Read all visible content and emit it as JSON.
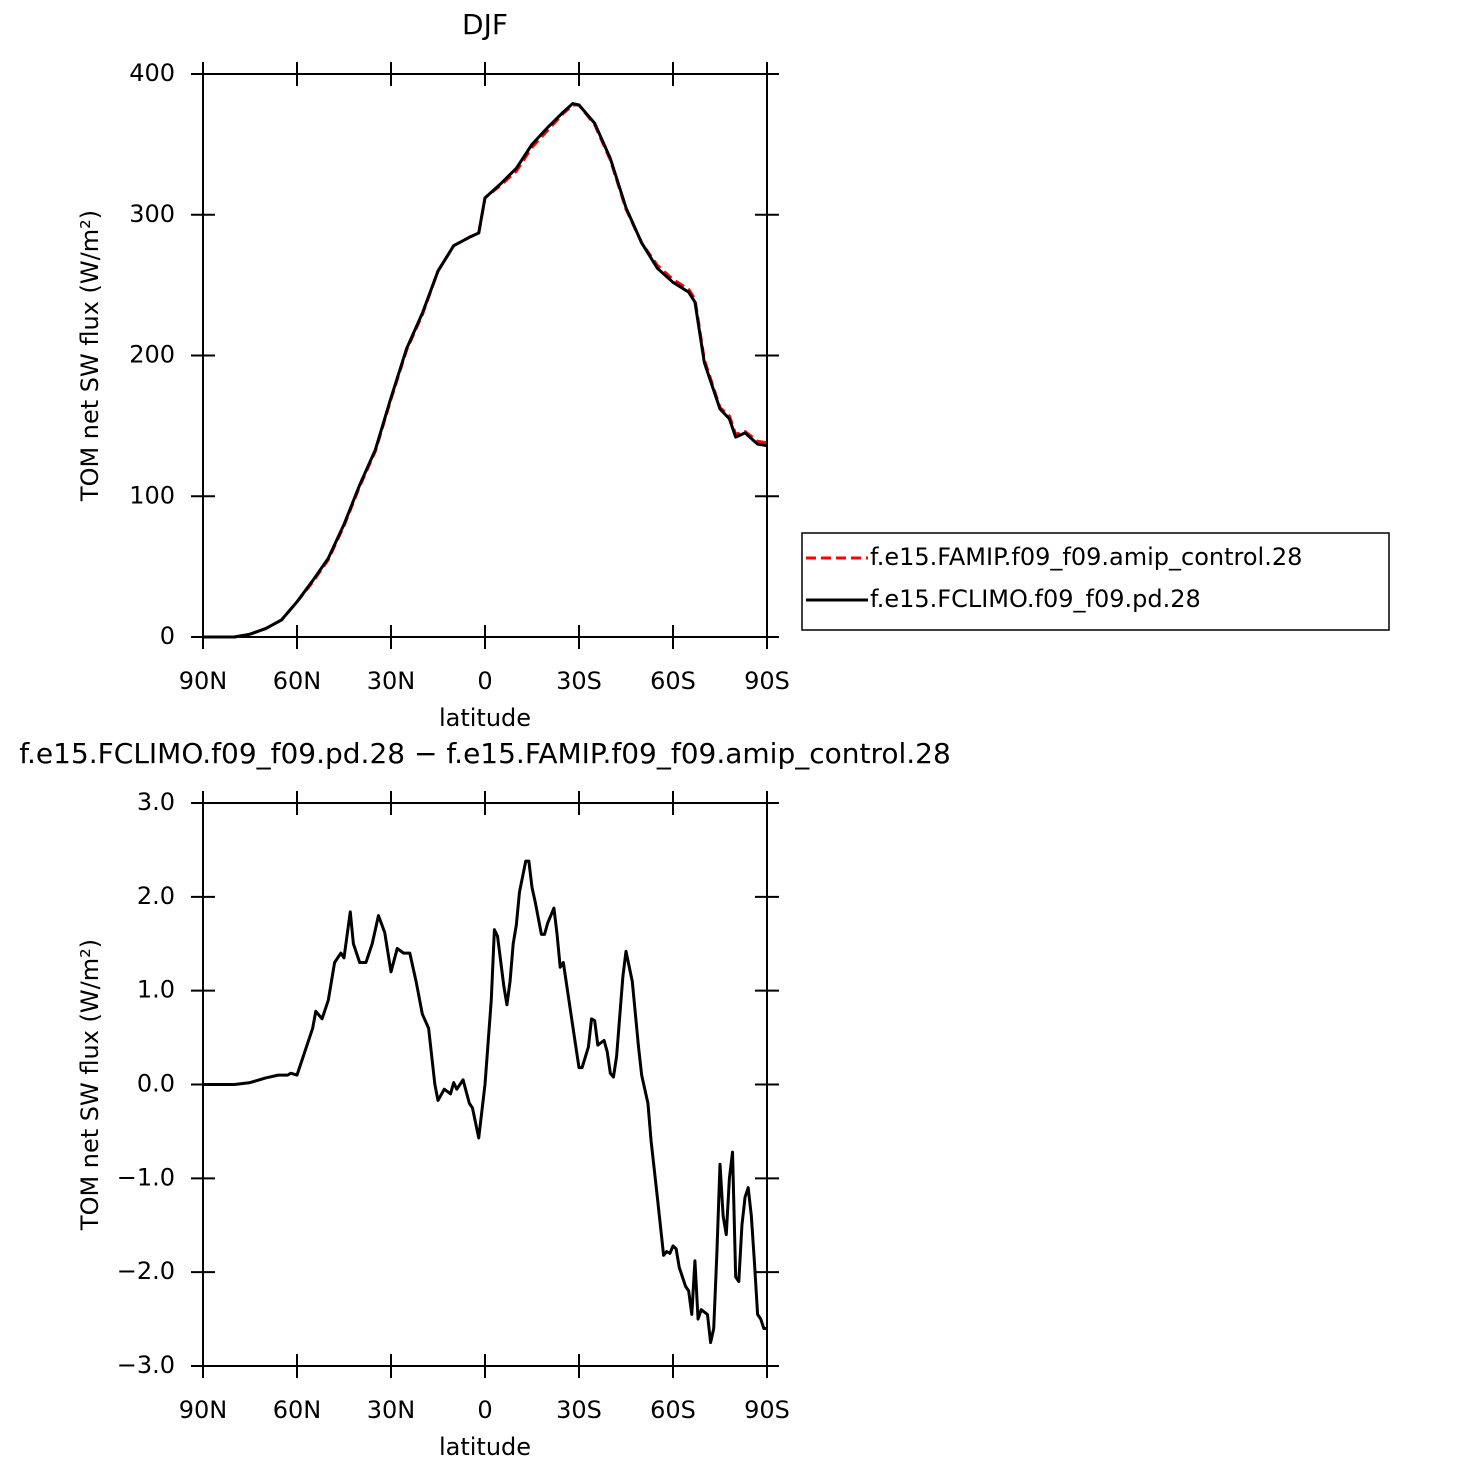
{
  "chart_data": [
    {
      "type": "line",
      "title": "DJF",
      "xlabel": "latitude",
      "ylabel": "TOM net SW flux (W/m²)",
      "xlim": [
        90,
        -90
      ],
      "ylim": [
        0,
        400
      ],
      "xticks": [
        {
          "value": 90,
          "label": "90N"
        },
        {
          "value": 60,
          "label": "60N"
        },
        {
          "value": 30,
          "label": "30N"
        },
        0,
        {
          "value": -30,
          "label": "30S"
        },
        {
          "value": -60,
          "label": "60S"
        },
        {
          "value": -90,
          "label": "90S"
        }
      ],
      "yticks": [
        0,
        100,
        200,
        300,
        400
      ],
      "legend": "right",
      "x": [
        90,
        80,
        75,
        70,
        65,
        60,
        55,
        50,
        45,
        40,
        35,
        30,
        25,
        20,
        15,
        10,
        5,
        2,
        0,
        -5,
        -10,
        -15,
        -20,
        -25,
        -28,
        -30,
        -35,
        -40,
        -45,
        -50,
        -55,
        -60,
        -65,
        -67,
        -70,
        -75,
        -78,
        -80,
        -83,
        -87,
        -90
      ],
      "series": [
        {
          "name": "f.e15.FAMIP.f09_f09.amip_control.28",
          "color": "#ff0000",
          "line_style": "dashed",
          "values": [
            0,
            0,
            2,
            6,
            12,
            25,
            39,
            55,
            79,
            107,
            132,
            169,
            204,
            229,
            260,
            278,
            284,
            287,
            312,
            321,
            331,
            348,
            360,
            372,
            378,
            378,
            364,
            339,
            304,
            280,
            264,
            254,
            247,
            240,
            197,
            163,
            157,
            144,
            146,
            139,
            138
          ]
        },
        {
          "name": "f.e15.FCLIMO.f09_f09.pd.28",
          "color": "#000000",
          "line_style": "solid",
          "values": [
            0,
            0,
            2,
            6,
            12,
            25,
            40,
            56,
            80,
            108,
            133,
            170,
            205,
            230,
            260,
            278,
            284,
            287,
            312,
            322,
            333,
            350,
            362,
            373,
            379,
            378,
            365,
            340,
            305,
            280,
            262,
            252,
            245,
            238,
            195,
            162,
            155,
            142,
            145,
            137,
            136
          ]
        }
      ]
    },
    {
      "type": "line",
      "title": "f.e15.FCLIMO.f09_f09.pd.28 − f.e15.FAMIP.f09_f09.amip_control.28",
      "xlabel": "latitude",
      "ylabel": "TOM net SW flux (W/m²)",
      "xlim": [
        90,
        -90
      ],
      "ylim": [
        -3,
        3
      ],
      "xticks": [
        {
          "value": 90,
          "label": "90N"
        },
        {
          "value": 60,
          "label": "60N"
        },
        {
          "value": 30,
          "label": "30N"
        },
        0,
        {
          "value": -30,
          "label": "30S"
        },
        {
          "value": -60,
          "label": "60S"
        },
        {
          "value": -90,
          "label": "90S"
        }
      ],
      "yticks": [
        {
          "value": 3,
          "label": "3.0"
        },
        {
          "value": 2,
          "label": "2.0"
        },
        {
          "value": 1,
          "label": "1.0"
        },
        {
          "value": 0,
          "label": "0.0"
        },
        {
          "value": -1,
          "label": "−1.0"
        },
        {
          "value": -2,
          "label": "−2.0"
        },
        {
          "value": -3,
          "label": "−3.0"
        }
      ],
      "x": [
        90,
        80,
        75,
        70,
        66,
        63,
        62,
        60,
        57,
        55,
        54,
        52,
        50,
        48,
        46,
        45,
        43,
        42,
        40,
        38,
        36,
        34,
        32,
        30,
        28,
        26,
        24,
        22,
        20,
        18,
        16,
        15,
        13,
        11,
        10,
        9,
        7,
        5,
        4,
        2,
        0,
        -2,
        -3,
        -4,
        -6,
        -7,
        -8,
        -9,
        -10,
        -11,
        -13,
        -14,
        -15,
        -16,
        -18,
        -19,
        -20,
        -22,
        -23,
        -24,
        -25,
        -27,
        -29,
        -30,
        -31,
        -33,
        -34,
        -35,
        -36,
        -38,
        -39,
        -40,
        -41,
        -42,
        -44,
        -45,
        -47,
        -49,
        -50,
        -52,
        -53,
        -55,
        -57,
        -58,
        -59,
        -60,
        -61,
        -62,
        -64,
        -65,
        -66,
        -67,
        -68,
        -69,
        -71,
        -72,
        -73,
        -74,
        -75,
        -76,
        -77,
        -78,
        -79,
        -80,
        -81,
        -82,
        -83,
        -84,
        -85,
        -86,
        -87,
        -88,
        -89,
        -90
      ],
      "series": [
        {
          "color": "#000000",
          "line_style": "solid",
          "values": [
            0,
            0,
            0.02,
            0.07,
            0.1,
            0.1,
            0.12,
            0.1,
            0.4,
            0.6,
            0.78,
            0.7,
            0.9,
            1.3,
            1.4,
            1.35,
            1.84,
            1.5,
            1.3,
            1.3,
            1.5,
            1.8,
            1.62,
            1.2,
            1.45,
            1.4,
            1.4,
            1.1,
            0.75,
            0.6,
            0,
            -0.17,
            -0.05,
            -0.1,
            0.02,
            -0.05,
            0.05,
            -0.2,
            -0.25,
            -0.57,
            0,
            0.9,
            1.65,
            1.58,
            1.05,
            0.85,
            1.1,
            1.5,
            1.7,
            2.05,
            2.38,
            2.38,
            2.1,
            1.95,
            1.6,
            1.6,
            1.72,
            1.88,
            1.6,
            1.25,
            1.3,
            0.85,
            0.4,
            0.18,
            0.18,
            0.4,
            0.7,
            0.68,
            0.42,
            0.47,
            0.35,
            0.12,
            0.08,
            0.3,
            1.15,
            1.42,
            1.1,
            0.4,
            0.1,
            -0.2,
            -0.6,
            -1.2,
            -1.82,
            -1.78,
            -1.8,
            -1.72,
            -1.75,
            -1.95,
            -2.15,
            -2.2,
            -2.45,
            -1.88,
            -2.5,
            -2.4,
            -2.45,
            -2.75,
            -2.6,
            -1.8,
            -0.85,
            -1.4,
            -1.6,
            -1.0,
            -0.72,
            -2.05,
            -2.1,
            -1.5,
            -1.2,
            -1.1,
            -1.4,
            -1.9,
            -2.45,
            -2.5,
            -2.6,
            -2.6
          ]
        }
      ]
    }
  ]
}
